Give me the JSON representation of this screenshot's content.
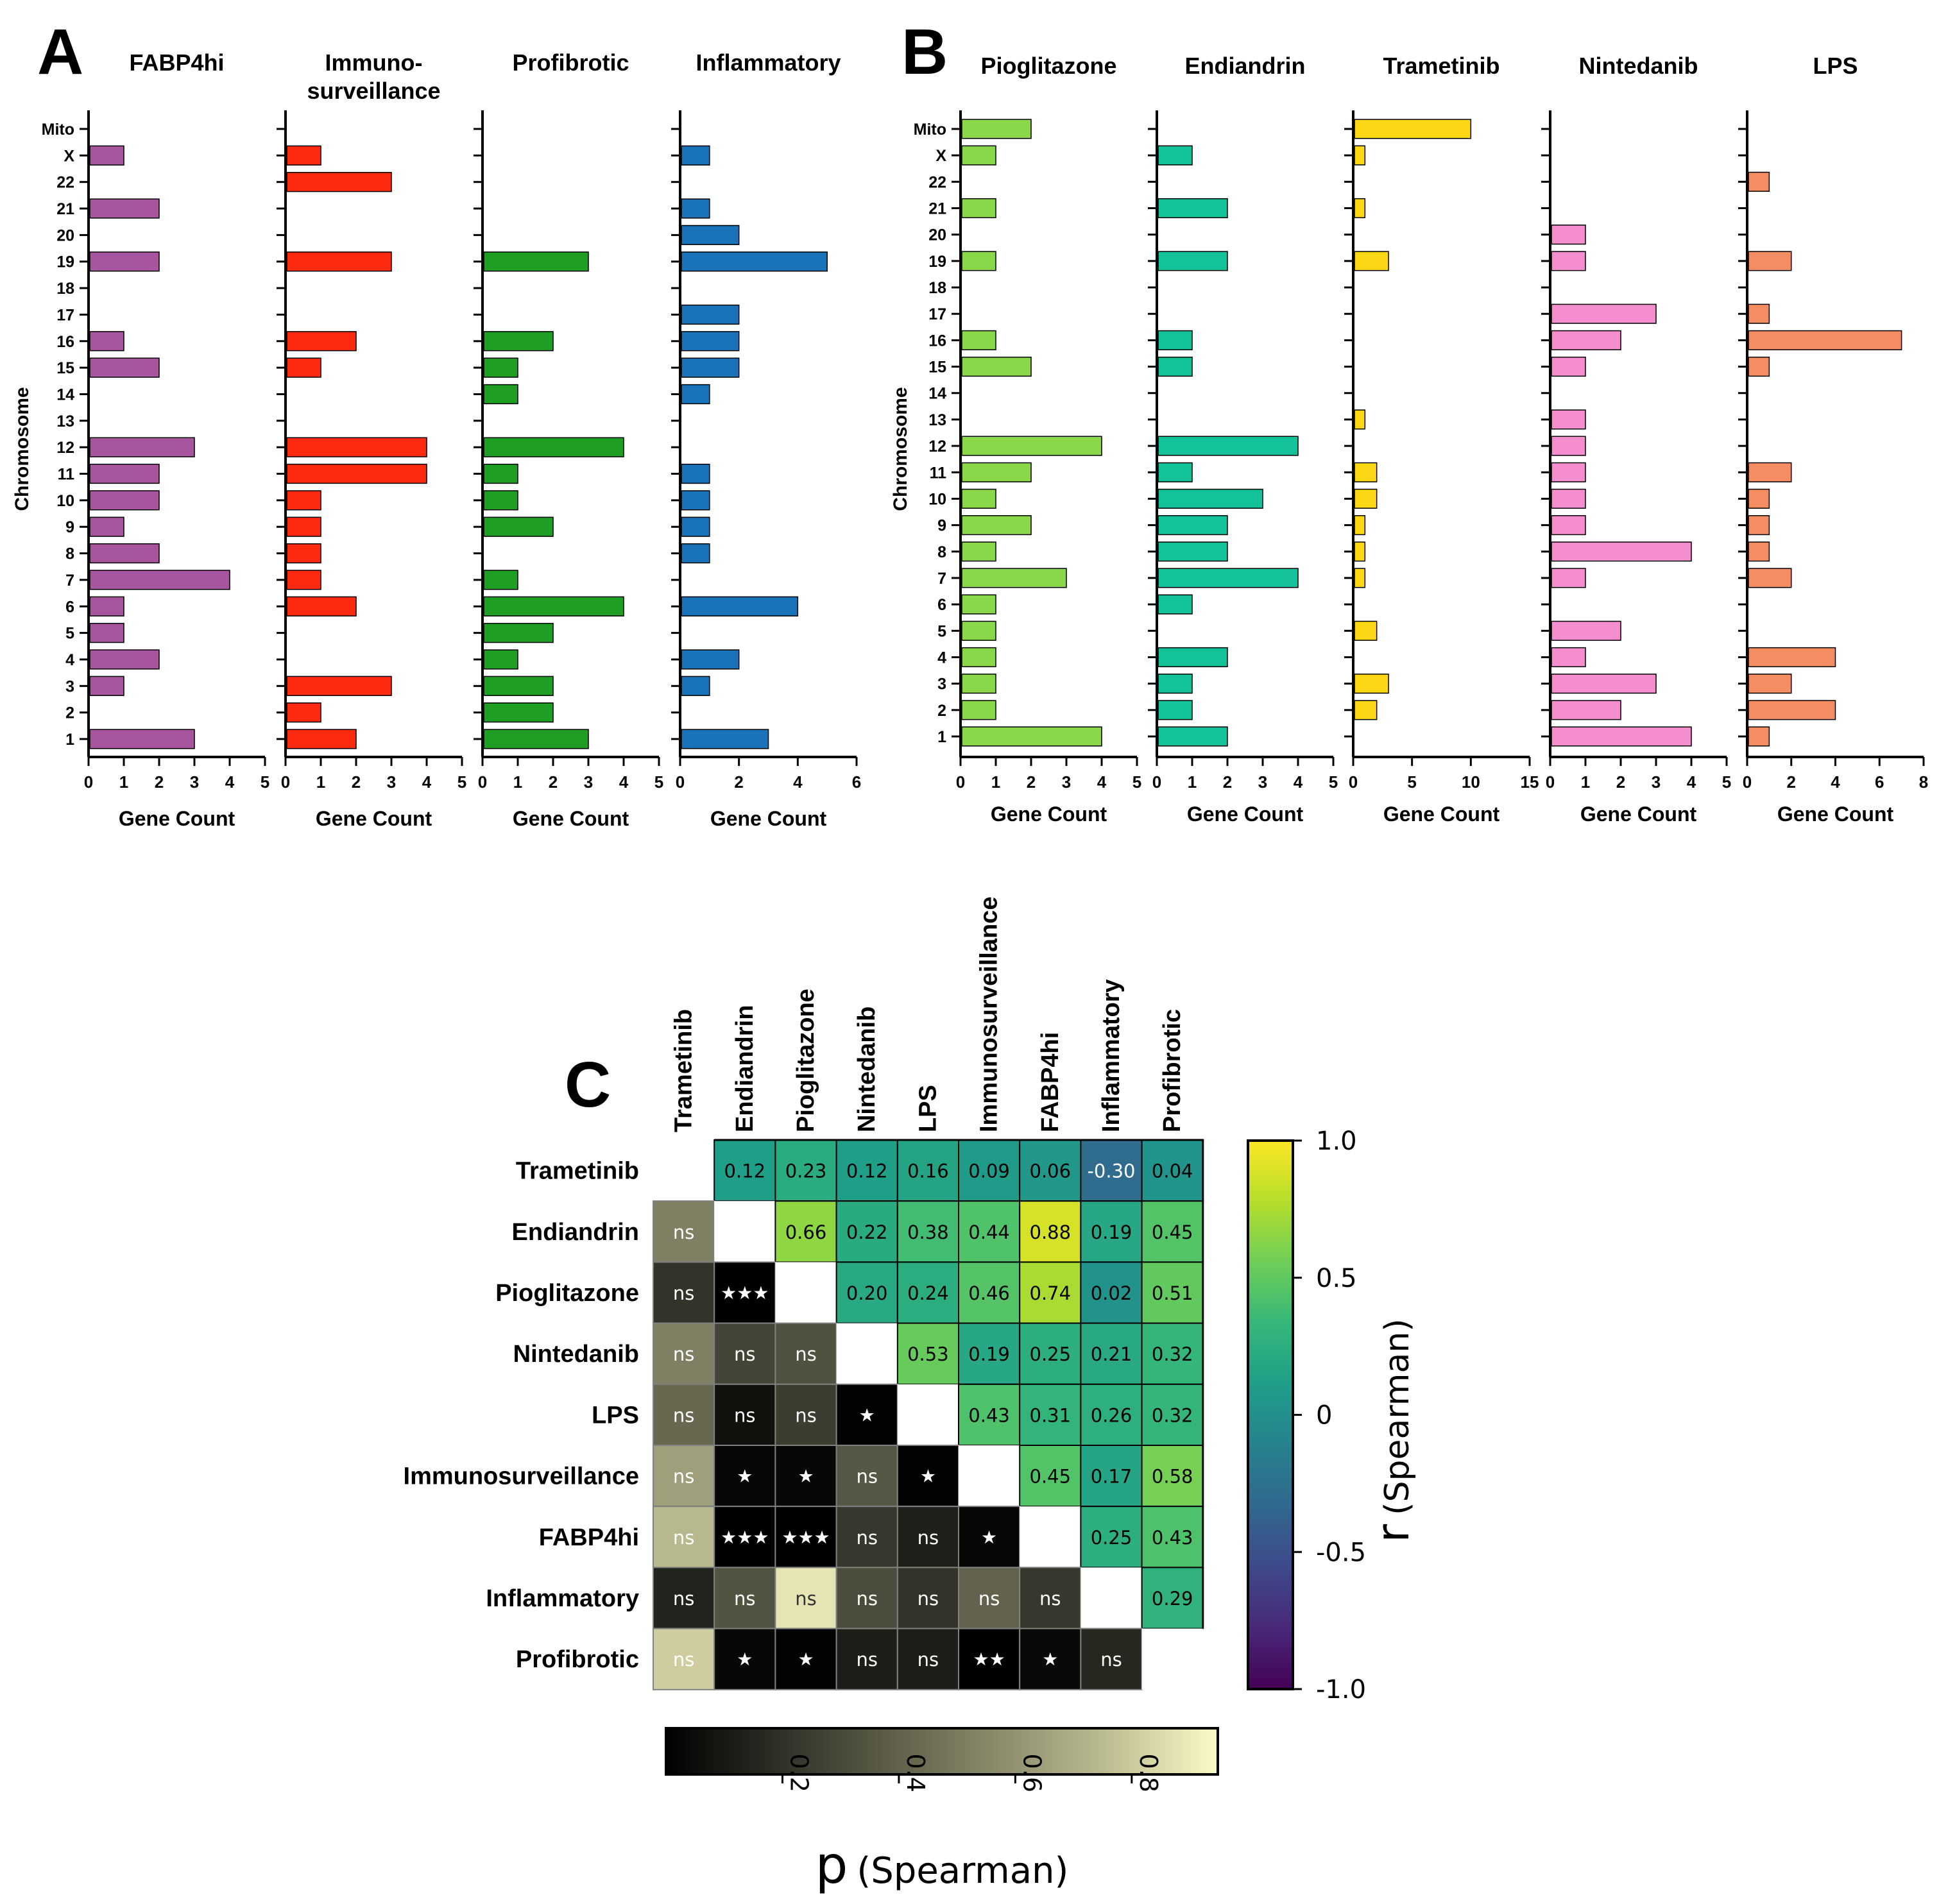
{
  "chart_data": [
    {
      "type": "bar",
      "panel": "A",
      "orientation": "horizontal",
      "categories": [
        "1",
        "2",
        "3",
        "4",
        "5",
        "6",
        "7",
        "8",
        "9",
        "10",
        "11",
        "12",
        "13",
        "14",
        "15",
        "16",
        "17",
        "18",
        "19",
        "20",
        "21",
        "22",
        "X",
        "Mito"
      ],
      "ylabel": "Chromosome",
      "xlabel": "Gene Count",
      "series": [
        {
          "name": "FABP4hi",
          "color": "#a855a0",
          "xlim": [
            0,
            5
          ],
          "xticks": [
            "0",
            "1",
            "2",
            "3",
            "4",
            "5"
          ],
          "values": [
            3,
            0,
            1,
            2,
            1,
            1,
            4,
            2,
            1,
            2,
            2,
            3,
            0,
            0,
            2,
            1,
            0,
            0,
            2,
            0,
            2,
            0,
            1,
            0
          ]
        },
        {
          "name": "Immuno-\nsurveillance",
          "color": "#ff2a10",
          "xlim": [
            0,
            5
          ],
          "xticks": [
            "0",
            "1",
            "2",
            "3",
            "4",
            "5"
          ],
          "values": [
            2,
            1,
            3,
            0,
            0,
            2,
            1,
            1,
            1,
            1,
            4,
            4,
            0,
            0,
            1,
            2,
            0,
            0,
            3,
            0,
            0,
            3,
            1,
            0
          ]
        },
        {
          "name": "Profibrotic",
          "color": "#1f9e24",
          "xlim": [
            0,
            5
          ],
          "xticks": [
            "0",
            "1",
            "2",
            "3",
            "4",
            "5"
          ],
          "values": [
            3,
            2,
            2,
            1,
            2,
            4,
            1,
            0,
            2,
            1,
            1,
            4,
            0,
            1,
            1,
            2,
            0,
            0,
            3,
            0,
            0,
            0,
            0,
            0
          ]
        },
        {
          "name": "Inflammatory",
          "color": "#1a72b8",
          "xlim": [
            0,
            6
          ],
          "xticks": [
            "0",
            "2",
            "4",
            "6"
          ],
          "values": [
            3,
            0,
            1,
            2,
            0,
            4,
            0,
            1,
            1,
            1,
            1,
            0,
            0,
            1,
            2,
            2,
            2,
            0,
            5,
            2,
            1,
            0,
            1,
            0
          ]
        }
      ]
    },
    {
      "type": "bar",
      "panel": "B",
      "orientation": "horizontal",
      "categories": [
        "1",
        "2",
        "3",
        "4",
        "5",
        "6",
        "7",
        "8",
        "9",
        "10",
        "11",
        "12",
        "13",
        "14",
        "15",
        "16",
        "17",
        "18",
        "19",
        "20",
        "21",
        "22",
        "X",
        "Mito"
      ],
      "ylabel": "Chromosome",
      "xlabel": "Gene Count",
      "series": [
        {
          "name": "Pioglitazone",
          "color": "#8ad84a",
          "xlim": [
            0,
            5
          ],
          "xticks": [
            "0",
            "1",
            "2",
            "3",
            "4",
            "5"
          ],
          "values": [
            4,
            1,
            1,
            1,
            1,
            1,
            3,
            1,
            2,
            1,
            2,
            4,
            0,
            0,
            2,
            1,
            0,
            0,
            1,
            0,
            1,
            0,
            1,
            2
          ]
        },
        {
          "name": "Endiandrin",
          "color": "#14c29a",
          "xlim": [
            0,
            5
          ],
          "xticks": [
            "0",
            "1",
            "2",
            "3",
            "4",
            "5"
          ],
          "values": [
            2,
            1,
            1,
            2,
            0,
            1,
            4,
            2,
            2,
            3,
            1,
            4,
            0,
            0,
            1,
            1,
            0,
            0,
            2,
            0,
            2,
            0,
            1,
            0
          ]
        },
        {
          "name": "Trametinib",
          "color": "#fcd715",
          "xlim": [
            0,
            15
          ],
          "xticks": [
            "0",
            "5",
            "10",
            "15"
          ],
          "values": [
            0,
            2,
            3,
            0,
            2,
            0,
            1,
            1,
            1,
            2,
            2,
            0,
            1,
            0,
            0,
            0,
            0,
            0,
            3,
            0,
            1,
            0,
            1,
            10
          ]
        },
        {
          "name": "Nintedanib",
          "color": "#f58ecf",
          "xlim": [
            0,
            5
          ],
          "xticks": [
            "0",
            "1",
            "2",
            "3",
            "4",
            "5"
          ],
          "values": [
            4,
            2,
            3,
            1,
            2,
            0,
            1,
            4,
            1,
            1,
            1,
            1,
            1,
            0,
            1,
            2,
            3,
            0,
            1,
            1,
            0,
            0,
            0,
            0
          ]
        },
        {
          "name": "LPS",
          "color": "#f58d63",
          "xlim": [
            0,
            8
          ],
          "xticks": [
            "0",
            "2",
            "4",
            "6",
            "8"
          ],
          "values": [
            1,
            4,
            2,
            4,
            0,
            0,
            2,
            1,
            1,
            1,
            2,
            0,
            0,
            0,
            1,
            7,
            1,
            0,
            2,
            0,
            0,
            1,
            0,
            0
          ]
        }
      ]
    },
    {
      "type": "heatmap",
      "panel": "C",
      "labels": [
        "Trametinib",
        "Endiandrin",
        "Pioglitazone",
        "Nintedanib",
        "LPS",
        "Immunosurveillance",
        "FABP4hi",
        "Inflammatory",
        "Profibrotic"
      ],
      "r_upper": [
        [
          null,
          0.12,
          0.23,
          0.12,
          0.16,
          0.09,
          0.06,
          -0.3,
          0.04
        ],
        [
          null,
          null,
          0.66,
          0.22,
          0.38,
          0.44,
          0.88,
          0.19,
          0.45
        ],
        [
          null,
          null,
          null,
          0.2,
          0.24,
          0.46,
          0.74,
          0.02,
          0.51
        ],
        [
          null,
          null,
          null,
          null,
          0.53,
          0.19,
          0.25,
          0.21,
          0.32
        ],
        [
          null,
          null,
          null,
          null,
          null,
          0.43,
          0.31,
          0.26,
          0.32
        ],
        [
          null,
          null,
          null,
          null,
          null,
          null,
          0.45,
          0.17,
          0.58
        ],
        [
          null,
          null,
          null,
          null,
          null,
          null,
          null,
          0.25,
          0.43
        ],
        [
          null,
          null,
          null,
          null,
          null,
          null,
          null,
          null,
          0.29
        ],
        [
          null,
          null,
          null,
          null,
          null,
          null,
          null,
          null,
          null
        ]
      ],
      "r_text": [
        [
          "",
          "0.12",
          "0.23",
          "0.12",
          "0.16",
          "0.09",
          "0.06",
          "-0.30",
          "0.04"
        ],
        [
          "",
          "",
          "0.66",
          "0.22",
          "0.38",
          "0.44",
          "0.88",
          "0.19",
          "0.45"
        ],
        [
          "",
          "",
          "",
          "0.20",
          "0.24",
          "0.46",
          "0.74",
          "0.02",
          "0.51"
        ],
        [
          "",
          "",
          "",
          "",
          "0.53",
          "0.19",
          "0.25",
          "0.21",
          "0.32"
        ],
        [
          "",
          "",
          "",
          "",
          "",
          "0.43",
          "0.31",
          "0.26",
          "0.32"
        ],
        [
          "",
          "",
          "",
          "",
          "",
          "",
          "0.45",
          "0.17",
          "0.58"
        ],
        [
          "",
          "",
          "",
          "",
          "",
          "",
          "",
          "0.25",
          "0.43"
        ],
        [
          "",
          "",
          "",
          "",
          "",
          "",
          "",
          "",
          "0.29"
        ],
        [
          "",
          "",
          "",
          "",
          "",
          "",
          "",
          "",
          ""
        ]
      ],
      "p_lower": [
        [
          null,
          null,
          null,
          null,
          null,
          null,
          null,
          null,
          null
        ],
        [
          0.55,
          null,
          null,
          null,
          null,
          null,
          null,
          null,
          null
        ],
        [
          0.22,
          0.0005,
          null,
          null,
          null,
          null,
          null,
          null,
          null
        ],
        [
          0.55,
          0.3,
          0.35,
          null,
          null,
          null,
          null,
          null,
          null
        ],
        [
          0.45,
          0.07,
          0.26,
          0.01,
          null,
          null,
          null,
          null,
          null
        ],
        [
          0.68,
          0.03,
          0.03,
          0.38,
          0.01,
          null,
          null,
          null,
          null
        ],
        [
          0.78,
          0.0001,
          0.0001,
          0.24,
          0.14,
          0.03,
          null,
          null,
          null
        ],
        [
          0.15,
          0.36,
          0.93,
          0.33,
          0.22,
          0.43,
          0.24,
          null,
          null
        ],
        [
          0.85,
          0.03,
          0.01,
          0.13,
          0.13,
          0.003,
          0.04,
          0.17,
          null
        ]
      ],
      "sig_text": [
        [
          "",
          "",
          "",
          "",
          "",
          "",
          "",
          "",
          ""
        ],
        [
          "ns",
          "",
          "",
          "",
          "",
          "",
          "",
          "",
          ""
        ],
        [
          "ns",
          "★★★",
          "",
          "",
          "",
          "",
          "",
          "",
          ""
        ],
        [
          "ns",
          "ns",
          "ns",
          "",
          "",
          "",
          "",
          "",
          ""
        ],
        [
          "ns",
          "ns",
          "ns",
          "★",
          "",
          "",
          "",
          "",
          ""
        ],
        [
          "ns",
          "★",
          "★",
          "ns",
          "★",
          "",
          "",
          "",
          ""
        ],
        [
          "ns",
          "★★★",
          "★★★",
          "ns",
          "ns",
          "★",
          "",
          "",
          ""
        ],
        [
          "ns",
          "ns",
          "ns",
          "ns",
          "ns",
          "ns",
          "ns",
          "",
          ""
        ],
        [
          "ns",
          "★",
          "★",
          "ns",
          "ns",
          "★★",
          "★",
          "ns",
          ""
        ]
      ],
      "r_colorbar": {
        "label_r": "r",
        "label_rest": "(Spearman)",
        "ticks": [
          "1.0",
          "0.5",
          "0",
          "-0.5",
          "-1.0"
        ],
        "range": [
          -1,
          1
        ]
      },
      "p_colorbar": {
        "label_p": "p",
        "label_rest": "(Spearman)",
        "ticks": [
          "0.2",
          "0.4",
          "0.6",
          "0.8"
        ],
        "range": [
          0,
          1
        ]
      }
    }
  ],
  "panel_letters": {
    "a": "A",
    "b": "B",
    "c": "C"
  },
  "colors": {
    "viridis": [
      "#440154",
      "#482878",
      "#3e4989",
      "#31688e",
      "#26828e",
      "#1f9e89",
      "#35b779",
      "#6ece58",
      "#b5de2b",
      "#fde725"
    ],
    "pscale": [
      "#000000",
      "#2e2e26",
      "#5c5c48",
      "#8b8b6c",
      "#bdbd92",
      "#fbfbc6"
    ]
  }
}
